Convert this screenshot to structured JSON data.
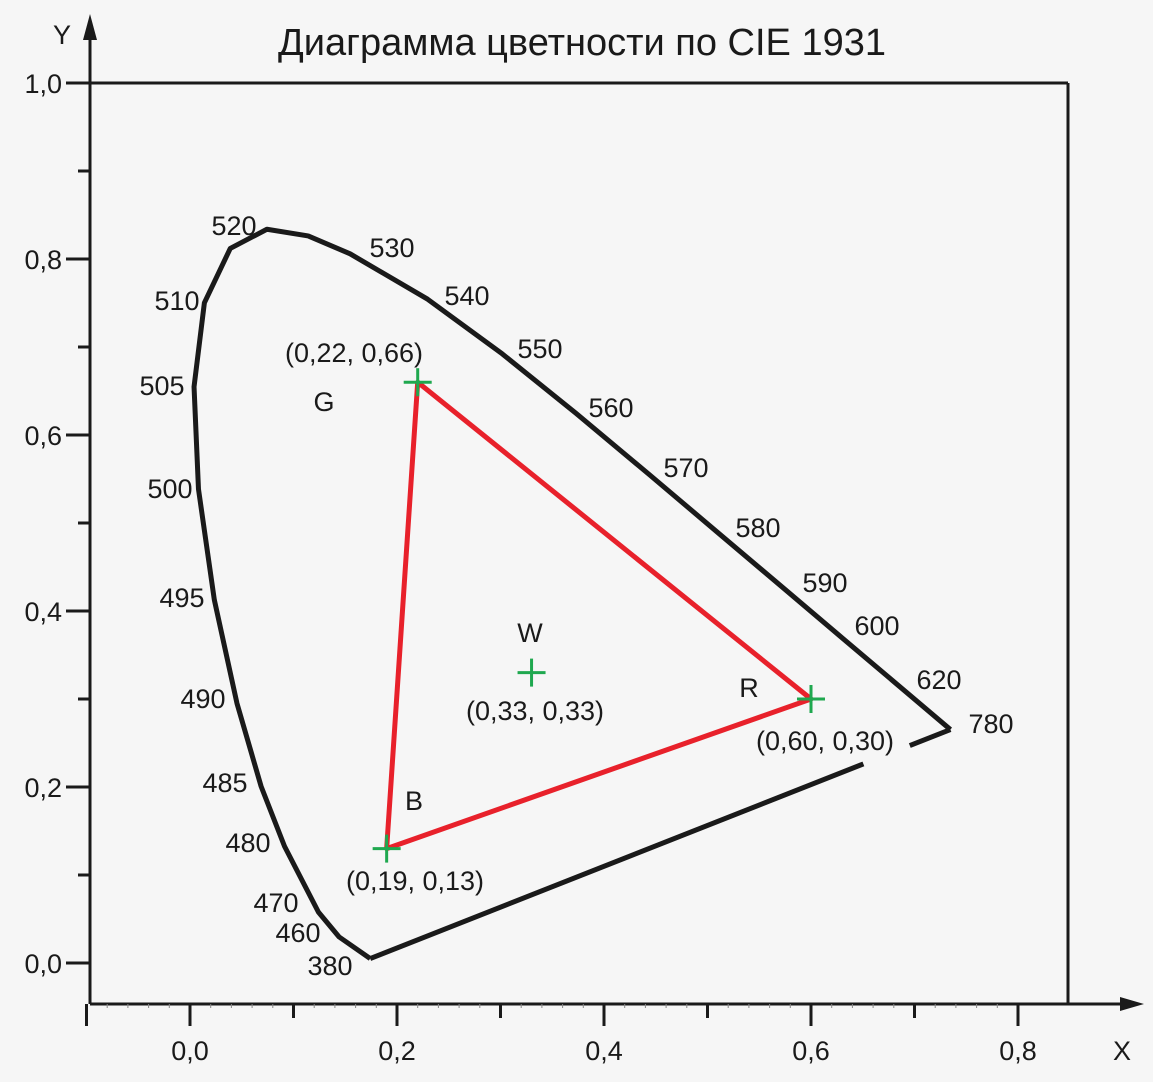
{
  "title": "Диаграмма цветности по CIE 1931",
  "axes": {
    "x_label": "X",
    "y_label": "Y",
    "x_ticks": [
      "0,0",
      "0,2",
      "0,4",
      "0,6",
      "0,8"
    ],
    "y_ticks": [
      "1,0",
      "0,8",
      "0,6",
      "0,4",
      "0,2",
      "0,0"
    ]
  },
  "colors": {
    "background": "#f6f6f6",
    "locus": "#1a1a1a",
    "triangle": "#e8212b",
    "marker": "#1fa84f"
  },
  "chart_data": {
    "type": "line",
    "title": "Диаграмма цветности по CIE 1931",
    "xlabel": "X",
    "ylabel": "Y",
    "xlim": [
      -0.1,
      0.85
    ],
    "ylim": [
      -0.05,
      1.0
    ],
    "spectral_locus": [
      {
        "nm": "380",
        "x": 0.1741,
        "y": 0.005
      },
      {
        "nm": "460",
        "x": 0.144,
        "y": 0.0297
      },
      {
        "nm": "470",
        "x": 0.1241,
        "y": 0.0578
      },
      {
        "nm": "480",
        "x": 0.0913,
        "y": 0.1327
      },
      {
        "nm": "485",
        "x": 0.0687,
        "y": 0.2007
      },
      {
        "nm": "490",
        "x": 0.0454,
        "y": 0.295
      },
      {
        "nm": "495",
        "x": 0.0235,
        "y": 0.4127
      },
      {
        "nm": "500",
        "x": 0.0082,
        "y": 0.5384
      },
      {
        "nm": "505",
        "x": 0.0039,
        "y": 0.6548
      },
      {
        "nm": "510",
        "x": 0.0139,
        "y": 0.7502
      },
      {
        "nm": "",
        "x": 0.0389,
        "y": 0.812
      },
      {
        "nm": "520",
        "x": 0.0743,
        "y": 0.8338
      },
      {
        "nm": "",
        "x": 0.1142,
        "y": 0.8262
      },
      {
        "nm": "530",
        "x": 0.1547,
        "y": 0.8059
      },
      {
        "nm": "540",
        "x": 0.2296,
        "y": 0.7543
      },
      {
        "nm": "550",
        "x": 0.3016,
        "y": 0.6923
      },
      {
        "nm": "560",
        "x": 0.3731,
        "y": 0.6245
      },
      {
        "nm": "570",
        "x": 0.4441,
        "y": 0.5547
      },
      {
        "nm": "580",
        "x": 0.5125,
        "y": 0.4866
      },
      {
        "nm": "590",
        "x": 0.5752,
        "y": 0.4242
      },
      {
        "nm": "600",
        "x": 0.627,
        "y": 0.3725
      },
      {
        "nm": "620",
        "x": 0.6915,
        "y": 0.3083
      },
      {
        "nm": "780",
        "x": 0.7347,
        "y": 0.2653
      }
    ],
    "primaries": [
      {
        "name": "G",
        "x": 0.22,
        "y": 0.66,
        "label": "(0,22, 0,66)"
      },
      {
        "name": "R",
        "x": 0.6,
        "y": 0.3,
        "label": "(0,60, 0,30)"
      },
      {
        "name": "B",
        "x": 0.19,
        "y": 0.13,
        "label": "(0,19, 0,13)"
      }
    ],
    "white_point": {
      "name": "W",
      "x": 0.33,
      "y": 0.33,
      "label": "(0,33, 0,33)"
    }
  }
}
